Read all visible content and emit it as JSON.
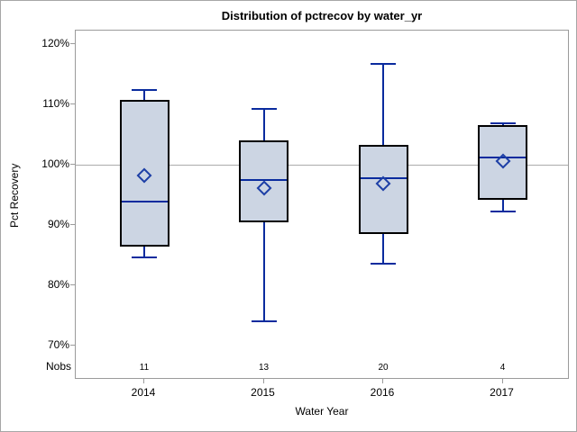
{
  "window": {
    "background": "#ffffff",
    "border_color": "#a6a6a6"
  },
  "chart_data": {
    "type": "boxplot",
    "title": "Distribution of pctrecov by water_yr",
    "xlabel": "Water Year",
    "ylabel": "Pct Recovery",
    "nobs_label": "Nobs",
    "categories": [
      "2014",
      "2015",
      "2016",
      "2017"
    ],
    "nobs": [
      "11",
      "13",
      "20",
      "4"
    ],
    "y_ticks": [
      {
        "value": 120,
        "label": "120%"
      },
      {
        "value": 110,
        "label": "110%"
      },
      {
        "value": 100,
        "label": "100%"
      },
      {
        "value": 90,
        "label": "90%"
      },
      {
        "value": 80,
        "label": "80%"
      },
      {
        "value": 70,
        "label": "70%"
      }
    ],
    "ylim": [
      64.4,
      122.3
    ],
    "reference_line": 100,
    "grid": "off",
    "legend": "none",
    "series": [
      {
        "category": "2014",
        "n": 11,
        "min": 84.7,
        "q1": 86.5,
        "median": 94.0,
        "q3": 110.8,
        "max": 112.4,
        "mean": 98.3
      },
      {
        "category": "2015",
        "n": 13,
        "min": 74.1,
        "q1": 90.5,
        "median": 97.6,
        "q3": 104.1,
        "max": 109.3,
        "mean": 96.2
      },
      {
        "category": "2016",
        "n": 20,
        "min": 83.7,
        "q1": 88.6,
        "median": 97.9,
        "q3": 103.3,
        "max": 116.8,
        "mean": 96.9
      },
      {
        "category": "2017",
        "n": 4,
        "min": 92.3,
        "q1": 94.3,
        "median": 101.3,
        "q3": 106.7,
        "max": 107.0,
        "mean": 100.6
      }
    ],
    "colors": {
      "box_fill": "#ccd5e3",
      "box_border": "#000000",
      "whisker": "#0a2b9e",
      "median": "#0a2b9e",
      "mean_marker": "#1d3fa6",
      "reference_line": "#ababab",
      "frame_border": "#9b9b9b",
      "text": "#000000"
    }
  }
}
